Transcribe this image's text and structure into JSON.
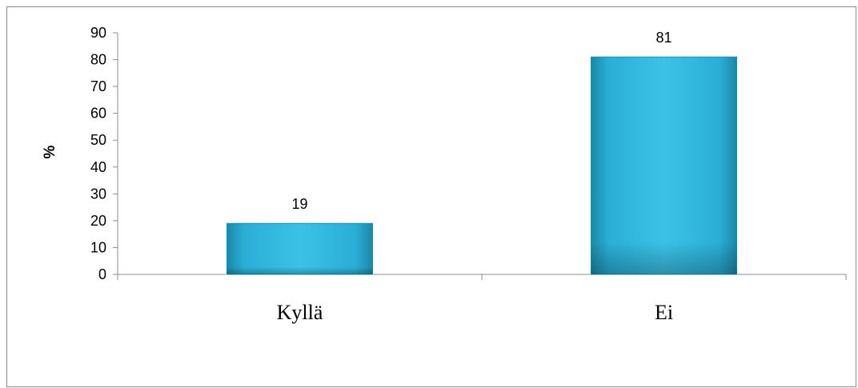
{
  "chart_data": {
    "type": "bar",
    "title": "",
    "xlabel": "",
    "ylabel": "%",
    "categories": [
      "Kyllä",
      "Ei"
    ],
    "values": [
      19,
      81
    ],
    "data_labels": [
      "19",
      "81"
    ],
    "ylim": [
      0,
      90
    ],
    "yticks": [
      0,
      10,
      20,
      30,
      40,
      50,
      60,
      70,
      80,
      90
    ],
    "grid": false,
    "legend": "none",
    "bar_color": "#2eb0d6",
    "bar_color_dark": "#1a8fb0"
  }
}
